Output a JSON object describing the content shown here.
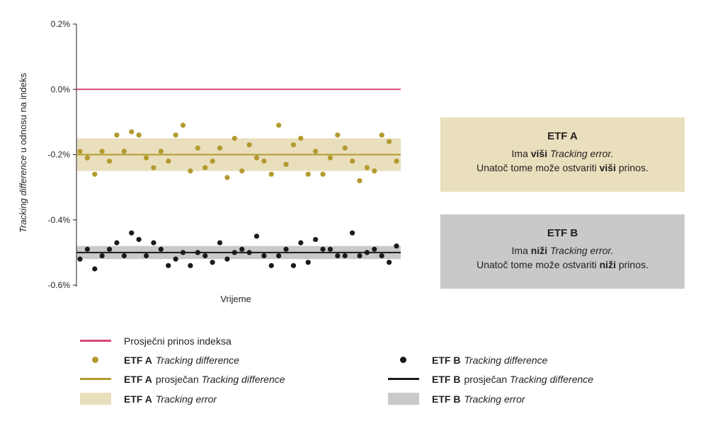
{
  "chart_data": {
    "type": "scatter",
    "ylabel_italic": "Tracking difference",
    "ylabel_rest": " u odnosu na indeks",
    "xlabel": "Vrijeme",
    "yticks": [
      "0.2%",
      "0.0%",
      "-0.2%",
      "-0.4%",
      "-0.6%"
    ],
    "yticks_values": [
      0.2,
      0.0,
      -0.2,
      -0.4,
      -0.6
    ],
    "ylim": [
      -0.6,
      0.2
    ],
    "index_return": 0.0,
    "grid": false,
    "colors": {
      "index": "#d9487a",
      "etf_a": "#b39a2f",
      "etf_a_band": "#e9dfbd",
      "etf_b": "#1a1a1a",
      "etf_b_band": "#c8c9cb"
    },
    "series": [
      {
        "key": "etf_a",
        "mean": -0.2,
        "band": [
          -0.25,
          -0.15
        ],
        "values": [
          -0.19,
          -0.21,
          -0.26,
          -0.19,
          -0.22,
          -0.14,
          -0.19,
          -0.13,
          -0.14,
          -0.21,
          -0.24,
          -0.19,
          -0.22,
          -0.14,
          -0.11,
          -0.25,
          -0.18,
          -0.24,
          -0.22,
          -0.18,
          -0.27,
          -0.15,
          -0.25,
          -0.17,
          -0.21,
          -0.22,
          -0.26,
          -0.11,
          -0.23,
          -0.17,
          -0.15,
          -0.26,
          -0.19,
          -0.26,
          -0.21,
          -0.14,
          -0.18,
          -0.22,
          -0.28,
          -0.24,
          -0.25,
          -0.14,
          -0.16,
          -0.22
        ]
      },
      {
        "key": "etf_b",
        "mean": -0.5,
        "band": [
          -0.52,
          -0.48
        ],
        "values": [
          -0.52,
          -0.49,
          -0.55,
          -0.51,
          -0.49,
          -0.47,
          -0.51,
          -0.44,
          -0.46,
          -0.51,
          -0.47,
          -0.49,
          -0.54,
          -0.52,
          -0.5,
          -0.54,
          -0.5,
          -0.51,
          -0.53,
          -0.47,
          -0.52,
          -0.5,
          -0.49,
          -0.5,
          -0.45,
          -0.51,
          -0.54,
          -0.51,
          -0.49,
          -0.54,
          -0.47,
          -0.53,
          -0.46,
          -0.49,
          -0.49,
          -0.51,
          -0.51,
          -0.44,
          -0.51,
          -0.5,
          -0.49,
          -0.51,
          -0.53,
          -0.48
        ]
      }
    ]
  },
  "box_a": {
    "title": "ETF A",
    "line1_a": "Ima ",
    "line1_b": "viši",
    "line1_c": " ",
    "line1_d": "Tracking error.",
    "line2_a": "Unatoč tome može ostvariti ",
    "line2_b": "viši",
    "line2_c": " prinos."
  },
  "box_b": {
    "title": "ETF B",
    "line1_a": "Ima ",
    "line1_b": "niži",
    "line1_c": " ",
    "line1_d": "Tracking error.",
    "line2_a": "Unatoč tome može ostvariti ",
    "line2_b": "niži",
    "line2_c": " prinos."
  },
  "legend": {
    "index": "Prosječni prinos indeksa",
    "a_td_bold": "ETF A",
    "a_td_italic": "Tracking difference",
    "a_avg_bold": "ETF A",
    "a_avg_text": "prosječan ",
    "a_avg_italic": "Tracking difference",
    "a_te_bold": "ETF A",
    "a_te_italic": "Tracking error",
    "b_td_bold": "ETF B",
    "b_td_italic": "Tracking difference",
    "b_avg_bold": "ETF B",
    "b_avg_text": "prosječan ",
    "b_avg_italic": "Tracking difference",
    "b_te_bold": "ETF B",
    "b_te_italic": "Tracking error"
  }
}
